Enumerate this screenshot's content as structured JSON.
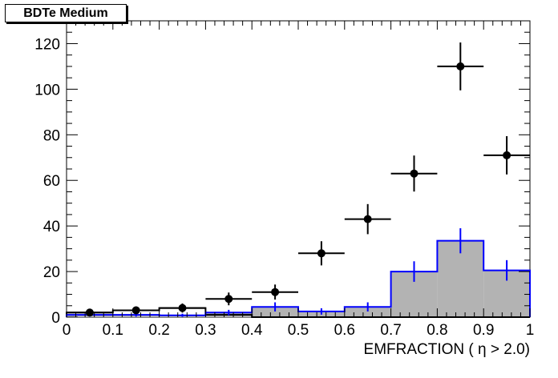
{
  "chart_data": {
    "type": "bar",
    "title": "BDTe Medium",
    "xlabel": "EMFRACTION ( η > 2.0)",
    "ylabel": "",
    "xlim": [
      0,
      1
    ],
    "ylim": [
      0,
      130
    ],
    "x_ticks": [
      "0",
      "0.1",
      "0.2",
      "0.3",
      "0.4",
      "0.5",
      "0.6",
      "0.7",
      "0.8",
      "0.9",
      "1"
    ],
    "y_ticks": [
      "0",
      "20",
      "40",
      "60",
      "80",
      "100",
      "120"
    ],
    "bin_edges": [
      0,
      0.1,
      0.2,
      0.3,
      0.4,
      0.5,
      0.6,
      0.7,
      0.8,
      0.9,
      1.0
    ],
    "series": [
      {
        "style": "data points with error bars",
        "color": "#000000",
        "x": [
          0.05,
          0.15,
          0.25,
          0.35,
          0.45,
          0.55,
          0.65,
          0.75,
          0.85,
          0.95
        ],
        "values": [
          2,
          3,
          4,
          8,
          11,
          28,
          43,
          63,
          110,
          71
        ],
        "errors": [
          1.4,
          1.7,
          2,
          2.8,
          3.3,
          5.3,
          6.6,
          7.9,
          10.5,
          8.4
        ]
      },
      {
        "style": "black outline histogram",
        "color": "#000000",
        "values": [
          2,
          3,
          4,
          1,
          0,
          0,
          0,
          0,
          0,
          0
        ]
      },
      {
        "style": "blue filled histogram (grey fill) with error bars",
        "color": "#0000ff",
        "fill": "#b3b3b3",
        "values": [
          1,
          1,
          0.8,
          2,
          4.5,
          2.5,
          4.5,
          20,
          33.5,
          20.5
        ],
        "errors": [
          0.8,
          0.8,
          0.7,
          1.2,
          2,
          1.4,
          2,
          4.5,
          5.5,
          4.5
        ]
      }
    ]
  }
}
